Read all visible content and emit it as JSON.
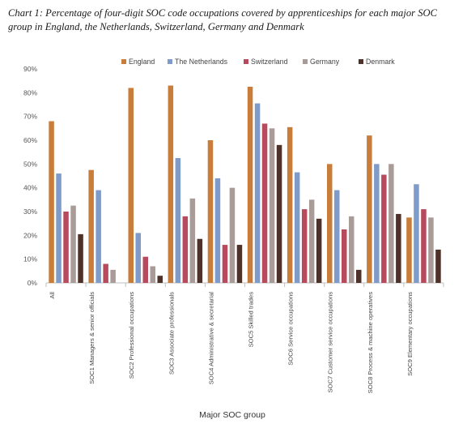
{
  "chart_data": {
    "type": "bar",
    "title": "Chart 1: Percentage of four-digit SOC code occupations covered by apprenticeships for each major SOC group in England, the Netherlands, Switzerland, Germany and Denmark",
    "xlabel": "Major SOC group",
    "ylabel": "",
    "ylim": [
      0,
      90
    ],
    "yticks": [
      "0%",
      "10%",
      "20%",
      "30%",
      "40%",
      "50%",
      "60%",
      "70%",
      "80%",
      "90%"
    ],
    "grid": false,
    "legend_position": "top",
    "categories": [
      "All",
      "SOC1 Managers & senior officials",
      "SOC2 Professional occupations",
      "SOC3 Associate professionals",
      "SOC4 Administrative & secretarial",
      "SOC5 Skilled trades",
      "SOC6 Service occupations",
      "SOC7 Customer service occupations",
      "SOC8 Process & machine operatives",
      "SOC9 Elementary occupations"
    ],
    "series": [
      {
        "name": "England",
        "color": "#C97D3A",
        "values": [
          68,
          47.5,
          82,
          83,
          60,
          82.5,
          65.5,
          50,
          62,
          27.5
        ]
      },
      {
        "name": "The Netherlands",
        "color": "#7F9BC9",
        "values": [
          46,
          39,
          21,
          52.5,
          44,
          75.5,
          46.5,
          39,
          50,
          41.5
        ]
      },
      {
        "name": "Switzerland",
        "color": "#B84A5E",
        "values": [
          30,
          8,
          11,
          28,
          16,
          67,
          31,
          22.5,
          45.5,
          31
        ]
      },
      {
        "name": "Germany",
        "color": "#A99C98",
        "values": [
          32.5,
          5.5,
          7,
          35.5,
          40,
          65,
          35,
          28,
          50,
          27.5
        ]
      },
      {
        "name": "Denmark",
        "color": "#4E3128",
        "values": [
          20.5,
          0,
          3,
          18.5,
          16,
          58,
          27,
          5.5,
          29,
          14
        ]
      }
    ]
  }
}
